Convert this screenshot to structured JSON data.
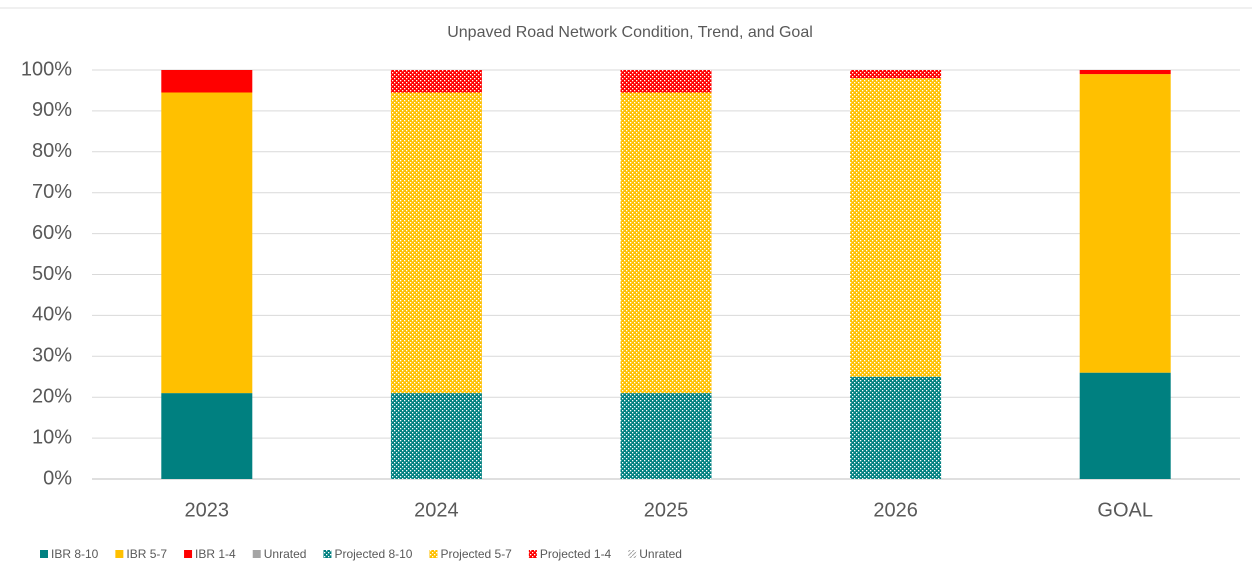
{
  "chart_data": {
    "type": "stacked_bar",
    "title": "Unpaved Road Network Condition, Trend, and Goal",
    "categories": [
      "2023",
      "2024",
      "2025",
      "2026",
      "GOAL"
    ],
    "series": [
      {
        "name": "IBR 8-10",
        "color": "#008080",
        "pattern": "solid",
        "values": [
          21,
          0,
          0,
          0,
          26
        ]
      },
      {
        "name": "IBR 5-7",
        "color": "#ffc000",
        "pattern": "solid",
        "values": [
          73.5,
          0,
          0,
          0,
          73
        ]
      },
      {
        "name": "IBR 1-4",
        "color": "#ff0000",
        "pattern": "solid",
        "values": [
          5.5,
          0,
          0,
          0,
          1
        ]
      },
      {
        "name": "Unrated",
        "color": "#a5a5a5",
        "pattern": "solid",
        "values": [
          0,
          0,
          0,
          0,
          0
        ]
      },
      {
        "name": "Projected 8-10",
        "color": "#008080",
        "pattern": "dots",
        "values": [
          0,
          21,
          21,
          25,
          0
        ]
      },
      {
        "name": "Projected 5-7",
        "color": "#ffc000",
        "pattern": "dots",
        "values": [
          0,
          73.5,
          73.5,
          73,
          0
        ]
      },
      {
        "name": "Projected 1-4",
        "color": "#ff0000",
        "pattern": "dots",
        "values": [
          0,
          5.5,
          5.5,
          2,
          0
        ]
      },
      {
        "name": "Unrated",
        "color": "#a5a5a5",
        "pattern": "hatch",
        "values": [
          0,
          0,
          0,
          0,
          0
        ]
      }
    ],
    "ylim": [
      0,
      100
    ],
    "yticks": [
      {
        "value": 0,
        "label": "0%"
      },
      {
        "value": 10,
        "label": "10%"
      },
      {
        "value": 20,
        "label": "20%"
      },
      {
        "value": 30,
        "label": "30%"
      },
      {
        "value": 40,
        "label": "40%"
      },
      {
        "value": 50,
        "label": "50%"
      },
      {
        "value": 60,
        "label": "60%"
      },
      {
        "value": 70,
        "label": "70%"
      },
      {
        "value": 80,
        "label": "80%"
      },
      {
        "value": 90,
        "label": "90%"
      },
      {
        "value": 100,
        "label": "100%"
      }
    ],
    "grid": true,
    "legend": "bottom"
  }
}
